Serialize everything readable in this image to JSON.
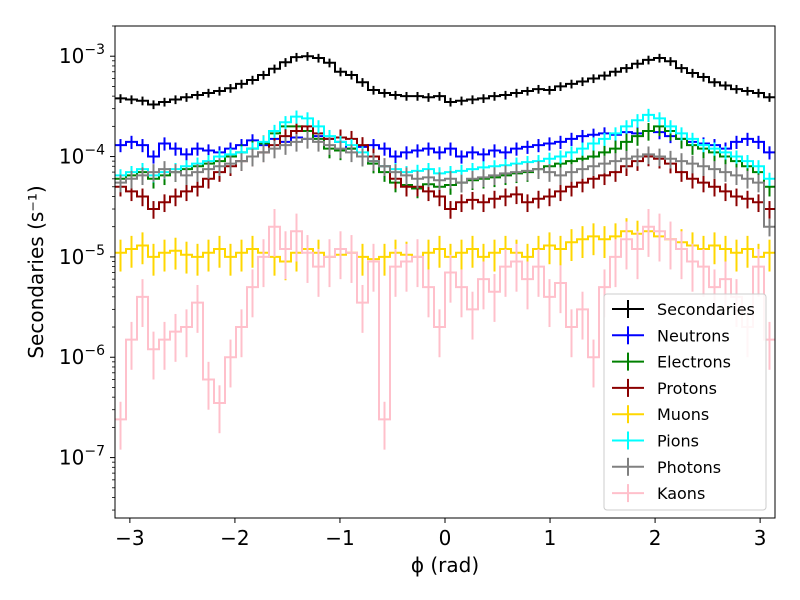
{
  "chart_data": {
    "type": "line",
    "xlabel": "ϕ (rad)",
    "ylabel": "Secondaries (s⁻¹)",
    "xlim": [
      -3.1416,
      3.1416
    ],
    "ylim": [
      2.5e-08,
      0.002
    ],
    "yscale": "log",
    "xticks": [
      -3,
      -2,
      -1,
      0,
      1,
      2,
      3
    ],
    "xtick_labels": [
      "−3",
      "−2",
      "−1",
      "0",
      "1",
      "2",
      "3"
    ],
    "ytick_exponents": [
      "−3",
      "−4",
      "−5",
      "−6",
      "−7"
    ],
    "ytick_values": [
      0.001,
      0.0001,
      1e-05,
      1e-06,
      1e-07
    ],
    "grid": false,
    "legend_position": "lower-right",
    "x_start": -3.1416,
    "x_end": 3.1416,
    "bins": 60,
    "series": [
      {
        "name": "Secondaries",
        "color": "#000000",
        "values": [
          0.00038,
          0.00037,
          0.00036,
          0.00033,
          0.00035,
          0.00037,
          0.00039,
          0.00041,
          0.00043,
          0.00045,
          0.00048,
          0.00053,
          0.00058,
          0.00065,
          0.00075,
          0.00087,
          0.00098,
          0.001,
          0.00096,
          0.00086,
          0.0007,
          0.00065,
          0.00055,
          0.00046,
          0.00043,
          0.00041,
          0.0004,
          0.0004,
          0.00039,
          0.0004,
          0.00035,
          0.00036,
          0.00037,
          0.00038,
          0.0004,
          0.00041,
          0.00043,
          0.00045,
          0.00047,
          0.00046,
          0.0005,
          0.00053,
          0.00056,
          0.0006,
          0.00064,
          0.0007,
          0.00076,
          0.00084,
          0.00092,
          0.00096,
          0.00089,
          0.00076,
          0.00068,
          0.00062,
          0.00055,
          0.00051,
          0.00047,
          0.00045,
          0.00043,
          0.00039
        ],
        "error_frac": 0.1
      },
      {
        "name": "Neutrons",
        "color": "#0000ff",
        "values": [
          0.00013,
          0.00014,
          0.00013,
          0.0001,
          0.000135,
          0.00012,
          0.000105,
          0.00012,
          0.000115,
          0.00011,
          0.00012,
          0.00013,
          0.000145,
          0.00013,
          0.00015,
          0.00014,
          0.000155,
          0.00015,
          0.00016,
          0.00015,
          0.00014,
          0.00012,
          0.000125,
          0.00013,
          0.00012,
          0.0001,
          0.00011,
          0.000115,
          0.00012,
          0.00011,
          0.00012,
          0.0001,
          0.00011,
          0.000105,
          0.000115,
          0.00011,
          0.00012,
          0.000125,
          0.00013,
          0.000135,
          0.00014,
          0.00015,
          0.00016,
          0.000165,
          0.00017,
          0.000165,
          0.000175,
          0.00017,
          0.00018,
          0.000175,
          0.00016,
          0.00015,
          0.00014,
          0.000135,
          0.00013,
          0.00012,
          0.00014,
          0.00015,
          0.00014,
          0.00011
        ],
        "error_frac": 0.15
      },
      {
        "name": "Electrons",
        "color": "#008000",
        "values": [
          6e-05,
          6.5e-05,
          7e-05,
          6e-05,
          6.5e-05,
          7e-05,
          7.5e-05,
          8e-05,
          8.5e-05,
          9e-05,
          0.0001,
          0.00011,
          0.00012,
          0.000135,
          0.00017,
          0.0002,
          0.0002,
          0.00018,
          0.00015,
          0.00012,
          0.000115,
          0.00012,
          0.0001,
          8.5e-05,
          7e-05,
          5.5e-05,
          5.2e-05,
          4.8e-05,
          5.3e-05,
          5e-05,
          5.2e-05,
          5.5e-05,
          5.8e-05,
          6e-05,
          6.2e-05,
          6.5e-05,
          6.8e-05,
          7e-05,
          7.5e-05,
          8e-05,
          8.5e-05,
          9e-05,
          9.5e-05,
          0.0001,
          0.00011,
          0.00012,
          0.00014,
          0.00016,
          0.00018,
          0.0002,
          0.00018,
          0.00015,
          0.00013,
          0.00012,
          0.00011,
          0.0001,
          9e-05,
          8e-05,
          7e-05,
          5e-05
        ],
        "error_frac": 0.2
      },
      {
        "name": "Protons",
        "color": "#8b0000",
        "values": [
          5e-05,
          4.5e-05,
          4e-05,
          3e-05,
          3.5e-05,
          4e-05,
          4.5e-05,
          5e-05,
          6e-05,
          7e-05,
          8e-05,
          9e-05,
          0.0001,
          0.00011,
          0.00013,
          0.00016,
          0.00018,
          0.0002,
          0.00017,
          0.00015,
          0.000155,
          0.00015,
          0.00013,
          0.0001,
          8e-05,
          6e-05,
          5e-05,
          5e-05,
          4.5e-05,
          4e-05,
          3e-05,
          3.5e-05,
          3.7e-05,
          3.5e-05,
          3.8e-05,
          4e-05,
          4.2e-05,
          3.5e-05,
          3.8e-05,
          4e-05,
          4.5e-05,
          5e-05,
          5.5e-05,
          6e-05,
          6.5e-05,
          7e-05,
          8e-05,
          9e-05,
          0.0001,
          9.5e-05,
          8.5e-05,
          7e-05,
          6e-05,
          5.5e-05,
          5e-05,
          4.5e-05,
          4e-05,
          3.8e-05,
          3.5e-05,
          3e-05
        ],
        "error_frac": 0.2
      },
      {
        "name": "Muons",
        "color": "#ffd700",
        "values": [
          1.1e-05,
          1.2e-05,
          1.3e-05,
          1e-05,
          1.1e-05,
          1.15e-05,
          1.05e-05,
          1e-05,
          1.1e-05,
          1.2e-05,
          1e-05,
          1.1e-05,
          1.2e-05,
          1.1e-05,
          1e-05,
          9e-06,
          1.1e-05,
          1.2e-05,
          1.1e-05,
          1e-05,
          1.05e-05,
          1.1e-05,
          1e-05,
          9.5e-06,
          1e-05,
          1.1e-05,
          1.05e-05,
          1e-05,
          1.1e-05,
          1.2e-05,
          1e-05,
          1.1e-05,
          1.2e-05,
          1e-05,
          1.1e-05,
          1.2e-05,
          1.1e-05,
          1e-05,
          1.2e-05,
          1.3e-05,
          1.2e-05,
          1.4e-05,
          1.5e-05,
          1.6e-05,
          1.5e-05,
          1.6e-05,
          1.8e-05,
          1.7e-05,
          1.8e-05,
          1.6e-05,
          1.5e-05,
          1.4e-05,
          1.3e-05,
          1.2e-05,
          1.3e-05,
          1.2e-05,
          1.1e-05,
          1.2e-05,
          1e-05,
          1.1e-05
        ],
        "error_frac": 0.35
      },
      {
        "name": "Pions",
        "color": "#00ffff",
        "values": [
          6.5e-05,
          7e-05,
          7.5e-05,
          6.5e-05,
          7e-05,
          7.5e-05,
          8e-05,
          8.5e-05,
          9e-05,
          0.0001,
          0.000105,
          0.00011,
          0.00012,
          0.00014,
          0.00018,
          0.00022,
          0.00025,
          0.00024,
          0.0002,
          0.00016,
          0.00014,
          0.00013,
          0.00011,
          9e-05,
          8e-05,
          7.5e-05,
          7e-05,
          7.2e-05,
          7.5e-05,
          6.8e-05,
          7e-05,
          7.2e-05,
          7.5e-05,
          7.8e-05,
          8e-05,
          8.2e-05,
          8.5e-05,
          8.8e-05,
          9e-05,
          9.5e-05,
          0.0001,
          0.00011,
          0.00012,
          0.000135,
          0.00015,
          0.00017,
          0.0002,
          0.00023,
          0.00026,
          0.00024,
          0.0002,
          0.00017,
          0.00015,
          0.00013,
          0.00012,
          0.00011,
          0.0001,
          9e-05,
          8e-05,
          6e-05
        ],
        "error_frac": 0.15
      },
      {
        "name": "Photons",
        "color": "#808080",
        "values": [
          5.5e-05,
          6e-05,
          6.5e-05,
          7e-05,
          7.5e-05,
          7e-05,
          6.5e-05,
          7e-05,
          7.5e-05,
          8e-05,
          8.5e-05,
          9e-05,
          0.0001,
          0.00011,
          0.00012,
          0.00013,
          0.00014,
          0.00015,
          0.00014,
          0.00013,
          0.00012,
          0.00011,
          0.0001,
          9e-05,
          8e-05,
          7e-05,
          6.5e-05,
          6e-05,
          6.2e-05,
          5.8e-05,
          6e-05,
          5.5e-05,
          6e-05,
          6.2e-05,
          6.5e-05,
          6.8e-05,
          7e-05,
          7.2e-05,
          7.5e-05,
          7e-05,
          6.5e-05,
          7e-05,
          7.5e-05,
          8e-05,
          8.5e-05,
          9e-05,
          9.5e-05,
          0.0001,
          0.000105,
          0.0001,
          9.5e-05,
          9e-05,
          8.5e-05,
          8e-05,
          7.5e-05,
          7e-05,
          6.5e-05,
          6e-05,
          5.5e-05,
          2e-05
        ],
        "error_frac": 0.2
      },
      {
        "name": "Kaons",
        "color": "#ffc0cb",
        "values": [
          2.4e-07,
          1.5e-06,
          4e-06,
          1.2e-06,
          1.5e-06,
          1.8e-06,
          2e-06,
          3.5e-06,
          6e-07,
          3.5e-07,
          1e-06,
          2e-06,
          5e-06,
          1e-05,
          2e-05,
          1.2e-05,
          1.8e-05,
          1.1e-05,
          8e-06,
          1e-05,
          1.2e-05,
          1.1e-05,
          3.5e-06,
          9e-06,
          2.4e-07,
          8e-06,
          9e-06,
          1e-05,
          5e-06,
          2e-06,
          7e-06,
          5e-06,
          3e-06,
          6e-06,
          4.5e-06,
          8e-06,
          9e-06,
          6e-06,
          8e-06,
          4e-06,
          5.5e-06,
          2e-06,
          3e-06,
          1e-06,
          5e-06,
          1e-05,
          1.5e-05,
          1.2e-05,
          2e-05,
          1.8e-05,
          1.5e-05,
          1.2e-05,
          9e-06,
          8e-06,
          5e-06,
          6e-06,
          4e-06,
          2e-06,
          8e-06,
          1.5e-06
        ],
        "error_frac": 0.5
      }
    ]
  }
}
